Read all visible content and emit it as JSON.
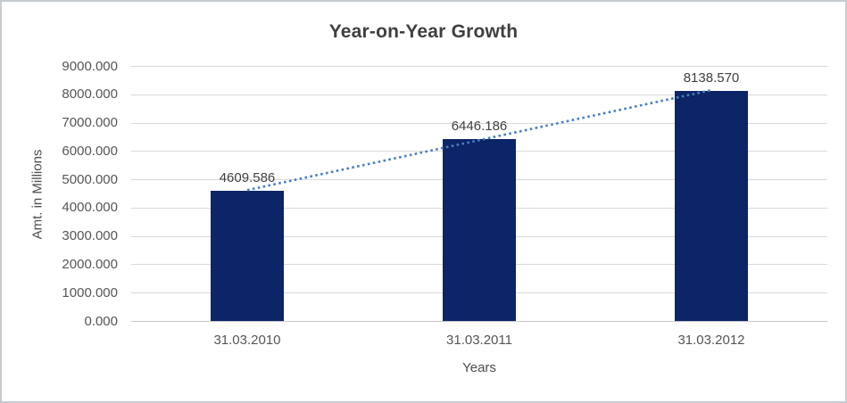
{
  "chart_data": {
    "type": "bar",
    "title": "Year-on-Year Growth",
    "xlabel": "Years",
    "ylabel": "Amt. in Millions",
    "categories": [
      "31.03.2010",
      "31.03.2011",
      "31.03.2012"
    ],
    "series": [
      {
        "name": "Amt. in Millions",
        "values": [
          4609.586,
          6446.186,
          8138.57
        ]
      }
    ],
    "data_labels": [
      "4609.586",
      "6446.186",
      "8138.570"
    ],
    "ylim": [
      0,
      9000
    ],
    "ytick_step": 1000,
    "ytick_labels_top_to_bottom": [
      "9000.000",
      "8000.000",
      "7000.000",
      "6000.000",
      "5000.000",
      "4000.000",
      "3000.000",
      "2000.000",
      "1000.000",
      "0.000"
    ],
    "grid": true,
    "legend": "none",
    "trendline": {
      "fit": "linear",
      "style": "dotted",
      "color": "#4a7ebb"
    },
    "colors": {
      "bar": "#0c2566",
      "gridline": "#d9d9d9",
      "axis_line": "#c9c9c9",
      "tick_text": "#555555",
      "label_text": "#3f3f3f",
      "title_text": "#3f3f3f",
      "frame_border": "#c7ccd0"
    }
  }
}
